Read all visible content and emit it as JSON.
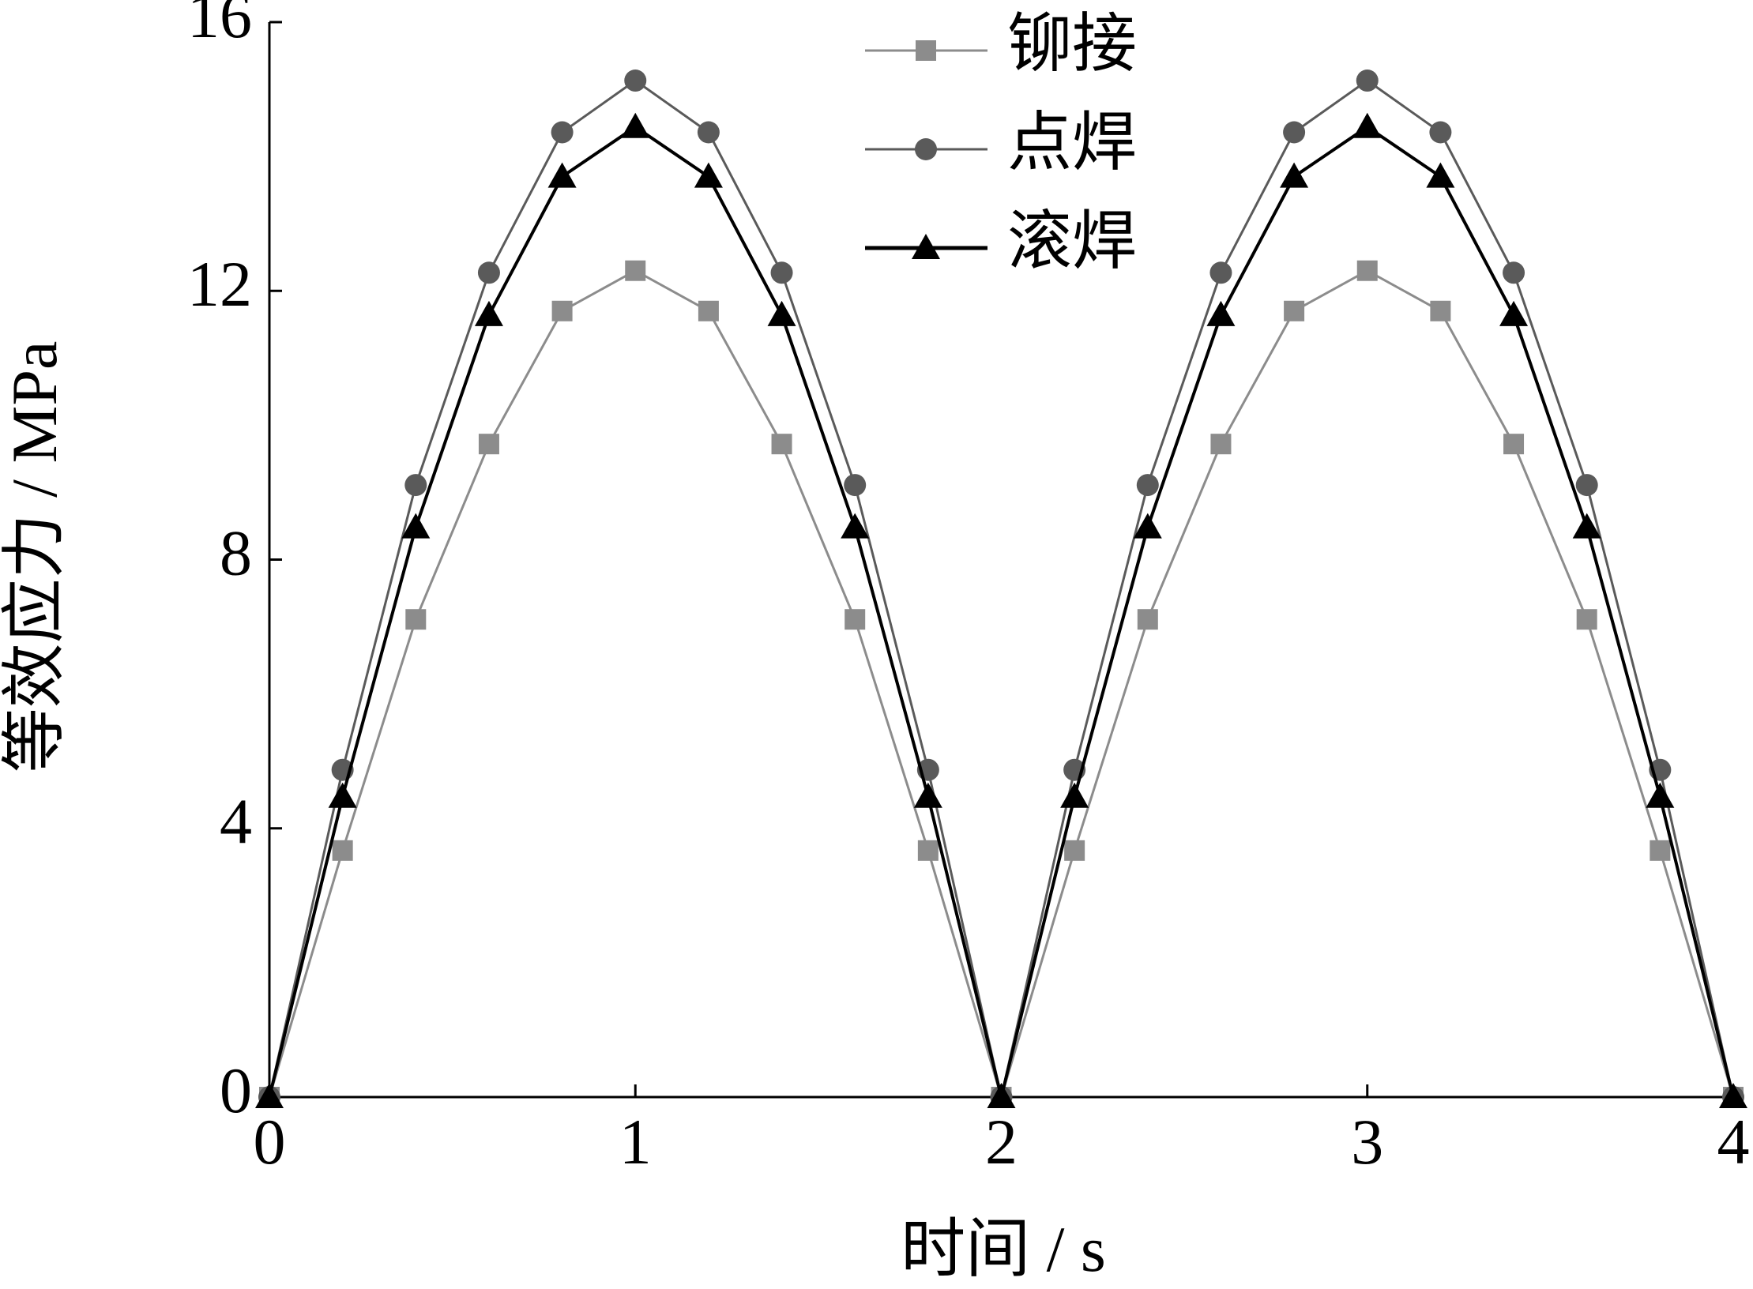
{
  "chart_data": {
    "type": "line",
    "x_label": "时间 / s",
    "y_label": "等效应力 / MPa",
    "x": [
      0,
      0.2,
      0.4,
      0.6,
      0.8,
      1,
      1.2,
      1.4,
      1.6,
      1.8,
      2,
      2.2,
      2.4,
      2.6,
      2.8,
      3,
      3.2,
      3.4,
      3.6,
      3.8,
      4
    ],
    "series": [
      {
        "name": "铆接",
        "color": "#8c8c8c",
        "marker": "square",
        "values": [
          0,
          3.67,
          7.11,
          9.72,
          11.7,
          12.3,
          11.7,
          9.72,
          7.11,
          3.67,
          0,
          3.67,
          7.11,
          9.72,
          11.7,
          12.3,
          11.7,
          9.72,
          7.11,
          3.67,
          0
        ]
      },
      {
        "name": "点焊",
        "color": "#5a5a5a",
        "marker": "circle",
        "values": [
          0,
          4.87,
          9.11,
          12.27,
          14.36,
          15.13,
          14.36,
          12.27,
          9.11,
          4.87,
          0,
          4.87,
          9.11,
          12.27,
          14.36,
          15.13,
          14.36,
          12.27,
          9.11,
          4.87,
          0
        ]
      },
      {
        "name": "滚焊",
        "color": "#000000",
        "marker": "triangle",
        "values": [
          0,
          4.47,
          8.48,
          11.64,
          13.7,
          14.44,
          13.7,
          11.64,
          8.48,
          4.47,
          0,
          4.47,
          8.48,
          11.64,
          13.7,
          14.44,
          13.7,
          11.64,
          8.48,
          4.47,
          0
        ]
      }
    ],
    "xlim": [
      0,
      4
    ],
    "xticks": [
      0,
      1,
      2,
      3,
      4
    ],
    "ylim": [
      0,
      16
    ],
    "yticks": [
      0,
      4,
      8,
      12,
      16
    ],
    "grid": false,
    "legend": "top"
  }
}
